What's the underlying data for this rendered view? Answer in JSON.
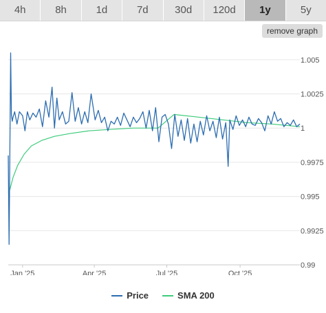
{
  "tabs": [
    {
      "label": "4h",
      "active": false
    },
    {
      "label": "8h",
      "active": false
    },
    {
      "label": "1d",
      "active": false
    },
    {
      "label": "7d",
      "active": false
    },
    {
      "label": "30d",
      "active": false
    },
    {
      "label": "120d",
      "active": false
    },
    {
      "label": "1y",
      "active": true
    },
    {
      "label": "5y",
      "active": false
    }
  ],
  "controls": {
    "remove_graph_label": "remove graph"
  },
  "colors": {
    "price": "#2b6cb0",
    "sma": "#3ccb7a"
  },
  "chart_data": {
    "type": "line",
    "title": "",
    "xlabel": "",
    "ylabel": "",
    "ylim": [
      0.99,
      1.00625
    ],
    "y_ticks": [
      {
        "value": 1.005,
        "label": "1.005"
      },
      {
        "value": 1.0025,
        "label": "1.0025"
      },
      {
        "value": 1.0,
        "label": "1"
      },
      {
        "value": 0.9975,
        "label": "0.9975"
      },
      {
        "value": 0.995,
        "label": "0.995"
      },
      {
        "value": 0.9925,
        "label": "0.9925"
      },
      {
        "value": 0.99,
        "label": "0.99"
      }
    ],
    "x_range": [
      "2024-12-14",
      "2025-12-15"
    ],
    "x_ticks": [
      {
        "date": "2025-01-01",
        "label": "Jan '25"
      },
      {
        "date": "2025-04-01",
        "label": "Apr '25"
      },
      {
        "date": "2025-07-01",
        "label": "Jul '25"
      },
      {
        "date": "2025-10-01",
        "label": "Oct '25"
      }
    ],
    "grid": {
      "horizontal": true,
      "vertical": false
    },
    "legend_position": "bottom-center",
    "series": [
      {
        "name": "Price",
        "x": [
          "2024-12-14",
          "2024-12-15",
          "2024-12-16",
          "2024-12-17",
          "2024-12-18",
          "2024-12-19",
          "2024-12-20",
          "2024-12-22",
          "2024-12-25",
          "2024-12-28",
          "2025-01-01",
          "2025-01-04",
          "2025-01-07",
          "2025-01-10",
          "2025-01-14",
          "2025-01-18",
          "2025-01-22",
          "2025-01-26",
          "2025-01-30",
          "2025-02-03",
          "2025-02-07",
          "2025-02-10",
          "2025-02-13",
          "2025-02-16",
          "2025-02-20",
          "2025-02-24",
          "2025-02-28",
          "2025-03-04",
          "2025-03-08",
          "2025-03-12",
          "2025-03-16",
          "2025-03-20",
          "2025-03-24",
          "2025-03-28",
          "2025-04-02",
          "2025-04-06",
          "2025-04-10",
          "2025-04-14",
          "2025-04-18",
          "2025-04-22",
          "2025-04-26",
          "2025-04-30",
          "2025-05-04",
          "2025-05-08",
          "2025-05-12",
          "2025-05-16",
          "2025-05-20",
          "2025-05-24",
          "2025-05-28",
          "2025-06-01",
          "2025-06-05",
          "2025-06-09",
          "2025-06-13",
          "2025-06-17",
          "2025-06-21",
          "2025-06-25",
          "2025-06-29",
          "2025-07-03",
          "2025-07-07",
          "2025-07-11",
          "2025-07-15",
          "2025-07-19",
          "2025-07-23",
          "2025-07-27",
          "2025-07-31",
          "2025-08-04",
          "2025-08-08",
          "2025-08-12",
          "2025-08-16",
          "2025-08-20",
          "2025-08-24",
          "2025-08-28",
          "2025-09-01",
          "2025-09-05",
          "2025-09-09",
          "2025-09-13",
          "2025-09-16",
          "2025-09-18",
          "2025-09-22",
          "2025-09-26",
          "2025-09-30",
          "2025-10-04",
          "2025-10-08",
          "2025-10-12",
          "2025-10-16",
          "2025-10-20",
          "2025-10-24",
          "2025-10-28",
          "2025-11-01",
          "2025-11-05",
          "2025-11-09",
          "2025-11-13",
          "2025-11-17",
          "2025-11-21",
          "2025-11-25",
          "2025-11-29",
          "2025-12-03",
          "2025-12-07",
          "2025-12-11",
          "2025-12-15"
        ],
        "y": [
          0.998,
          0.9915,
          0.998,
          1.0055,
          1.001,
          1.0005,
          1.0008,
          1.0012,
          1.0003,
          1.0012,
          1.0009,
          0.9998,
          1.0012,
          1.0006,
          1.0011,
          1.0008,
          1.0014,
          1.0001,
          1.002,
          1.0008,
          1.003,
          1.0,
          1.0022,
          1.0006,
          1.0012,
          1.0003,
          1.0005,
          1.0026,
          1.0005,
          1.0015,
          1.0003,
          1.0012,
          1.0004,
          1.0025,
          1.0006,
          1.0013,
          1.0004,
          1.0008,
          0.9998,
          1.0005,
          1.0003,
          1.0008,
          1.0002,
          1.0011,
          1.0006,
          1.0001,
          1.0008,
          1.0004,
          1.0007,
          1.0012,
          1.0,
          1.0013,
          0.9998,
          1.0015,
          0.999,
          1.0008,
          1.001,
          1.0003,
          0.9985,
          1.001,
          0.9994,
          1.0006,
          0.9991,
          1.0007,
          0.9989,
          1.0003,
          0.999,
          1.0005,
          0.9995,
          1.0009,
          0.9998,
          1.0005,
          0.9993,
          1.0008,
          0.9992,
          1.0004,
          0.9972,
          1.0006,
          0.9999,
          1.0009,
          1.0002,
          1.0006,
          1.0001,
          1.0008,
          1.0003,
          1.0002,
          1.0007,
          1.0004,
          0.9998,
          1.0009,
          1.0003,
          1.0012,
          1.0005,
          1.0007,
          1.0001,
          1.0004,
          1.0002,
          1.0006,
          1.0001,
          1.0003
        ]
      },
      {
        "name": "SMA 200",
        "x": [
          "2024-12-14",
          "2024-12-16",
          "2024-12-20",
          "2024-12-26",
          "2025-01-03",
          "2025-01-12",
          "2025-01-25",
          "2025-02-10",
          "2025-03-01",
          "2025-03-25",
          "2025-04-20",
          "2025-05-20",
          "2025-06-20",
          "2025-07-10",
          "2025-08-10",
          "2025-09-10",
          "2025-10-10",
          "2025-11-10",
          "2025-12-15"
        ],
        "y": [
          0.9953,
          0.9955,
          0.9964,
          0.9973,
          0.9981,
          0.9987,
          0.9991,
          0.9994,
          0.9996,
          0.9998,
          0.9999,
          1.0,
          1.0,
          1.001,
          1.0008,
          1.0006,
          1.0004,
          1.0003,
          1.0001
        ]
      }
    ]
  }
}
